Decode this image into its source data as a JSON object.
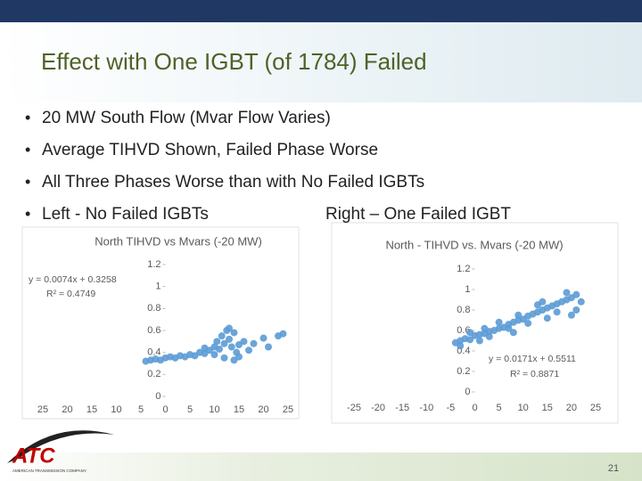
{
  "title": "Effect with One IGBT (of 1784) Failed",
  "bullets": [
    "20 MW South Flow (Mvar Flow Varies)",
    "Average TIHVD Shown, Failed Phase Worse",
    "All Three Phases Worse than with No Failed IGBTs",
    [
      "Left - No Failed IGBTs",
      "Right – One Failed IGBT"
    ]
  ],
  "logo": {
    "mark": "ATC",
    "name": "AMERICAN TRANSMISSION COMPANY"
  },
  "page_number": "21",
  "chart_data": [
    {
      "type": "scatter",
      "title": "North TIHVD vs Mvars (-20 MW)",
      "color": "#5b9bd5",
      "annotations": [
        "y = 0.0074x + 0.3258",
        "R² = 0.4749"
      ],
      "xlim": [
        -25,
        25
      ],
      "ylim": [
        0,
        1.2
      ],
      "xticks": [
        {
          "value": -25,
          "label": "25"
        },
        {
          "value": -20,
          "label": "20"
        },
        {
          "value": -15,
          "label": "15"
        },
        {
          "value": -10,
          "label": "10"
        },
        {
          "value": -5,
          "label": "5"
        },
        0,
        5,
        10,
        15,
        20,
        25
      ],
      "yticks": [
        0,
        0.2,
        0.4,
        0.6,
        0.8,
        1,
        1.2
      ],
      "x": [
        -4,
        -3,
        -2,
        -1,
        0,
        1,
        2,
        3,
        4,
        5,
        6,
        7,
        8,
        9,
        10,
        10.5,
        11,
        11.5,
        12,
        12.5,
        13,
        13.5,
        14,
        14.5,
        15,
        16,
        17,
        18,
        20,
        21,
        23,
        24,
        10,
        12,
        14,
        8,
        15,
        13
      ],
      "values": [
        0.32,
        0.33,
        0.34,
        0.33,
        0.35,
        0.36,
        0.35,
        0.37,
        0.36,
        0.38,
        0.37,
        0.4,
        0.39,
        0.42,
        0.45,
        0.5,
        0.43,
        0.55,
        0.48,
        0.6,
        0.52,
        0.45,
        0.58,
        0.4,
        0.47,
        0.5,
        0.42,
        0.48,
        0.53,
        0.45,
        0.55,
        0.57,
        0.38,
        0.35,
        0.33,
        0.44,
        0.36,
        0.62
      ]
    },
    {
      "type": "scatter",
      "title": "North - TIHVD vs. Mvars (-20 MW)",
      "color": "#5b9bd5",
      "annotations": [
        "y = 0.0171x + 0.5511",
        "R² = 0.8871"
      ],
      "xlim": [
        -25,
        25
      ],
      "ylim": [
        0,
        1.2
      ],
      "xticks": [
        -25,
        -20,
        -15,
        -10,
        -5,
        0,
        5,
        10,
        15,
        20,
        25
      ],
      "yticks": [
        0,
        0.2,
        0.4,
        0.6,
        0.8,
        1,
        1.2
      ],
      "x": [
        -4,
        -3,
        -2,
        -1,
        0,
        1,
        2,
        3,
        4,
        5,
        6,
        7,
        8,
        9,
        10,
        11,
        12,
        13,
        14,
        15,
        16,
        17,
        18,
        19,
        20,
        21,
        22,
        -3,
        -1,
        1,
        3,
        5,
        7,
        9,
        11,
        13,
        15,
        17,
        19,
        21,
        2,
        8,
        14,
        20
      ],
      "values": [
        0.48,
        0.5,
        0.52,
        0.51,
        0.55,
        0.56,
        0.57,
        0.59,
        0.6,
        0.62,
        0.63,
        0.66,
        0.68,
        0.7,
        0.71,
        0.74,
        0.76,
        0.78,
        0.8,
        0.82,
        0.84,
        0.86,
        0.88,
        0.9,
        0.92,
        0.95,
        0.88,
        0.45,
        0.58,
        0.5,
        0.54,
        0.68,
        0.62,
        0.75,
        0.67,
        0.85,
        0.72,
        0.78,
        0.97,
        0.8,
        0.62,
        0.58,
        0.88,
        0.75
      ]
    }
  ]
}
